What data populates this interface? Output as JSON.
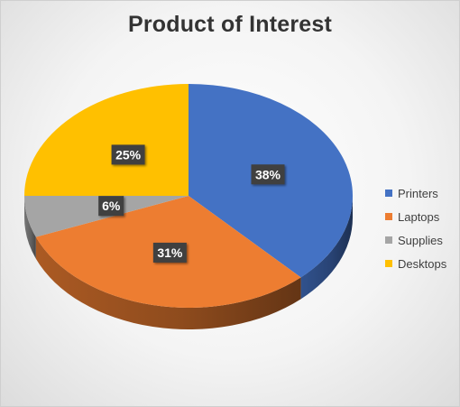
{
  "chart_data": {
    "type": "pie",
    "title": "Product of Interest",
    "style": "3d-tilted",
    "legend_position": "right",
    "categories": [
      "Printers",
      "Laptops",
      "Supplies",
      "Desktops"
    ],
    "values": [
      38,
      31,
      6,
      25
    ],
    "labels": [
      "38%",
      "31%",
      "6%",
      "25%"
    ],
    "colors": [
      "#4472C4",
      "#ED7D31",
      "#A5A5A5",
      "#FFC000"
    ]
  }
}
